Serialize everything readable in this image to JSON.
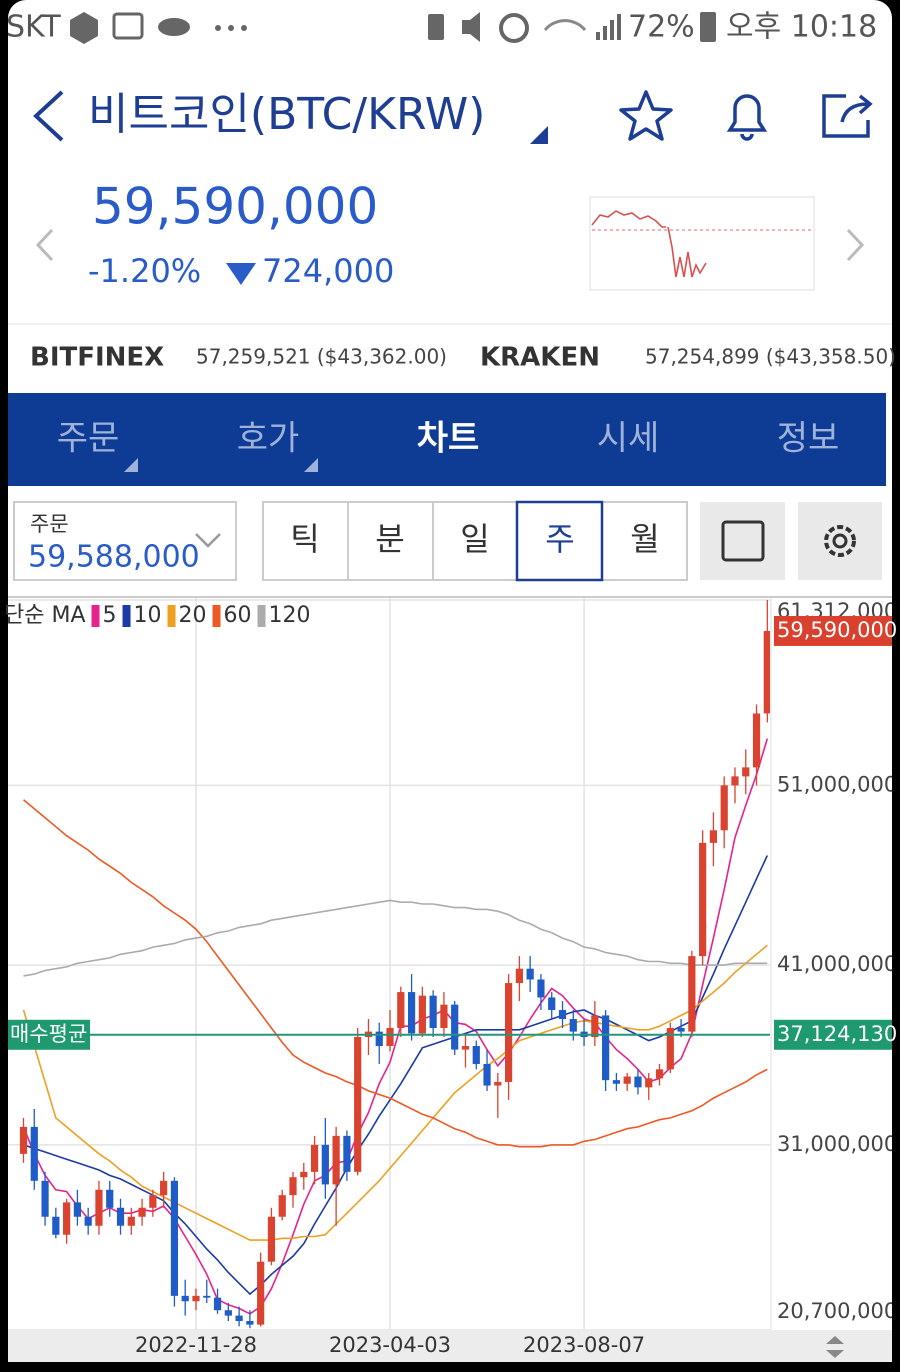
{
  "status_bar": {
    "carrier": "SKT",
    "battery": "72%",
    "time": "오후 10:18"
  },
  "header": {
    "title": "비트코인(BTC/KRW)"
  },
  "price": {
    "current": "59,590,000",
    "change_rate": "-1.20%",
    "change": "724,000"
  },
  "exchanges": [
    {
      "name": "BITFINEX",
      "price": "57,259,521 ($43,362.00)"
    },
    {
      "name": "KRAKEN",
      "price": "57,254,899 ($43,358.50)"
    }
  ],
  "tabs": [
    "주문",
    "호가",
    "차트",
    "시세",
    "정보"
  ],
  "order_box": {
    "label": "주문",
    "price": "59,588,000"
  },
  "periods": [
    "틱",
    "분",
    "일",
    "주",
    "월"
  ],
  "chart_data": {
    "type": "candlestick",
    "legend_title": "단순 MA",
    "up_color": "#d9432f",
    "down_color": "#1f5cc8",
    "grid": true,
    "ylim": [
      20700000,
      61312000
    ],
    "yticks": [
      {
        "value": 20700000,
        "label": "20,700,000"
      },
      {
        "value": 31000000,
        "label": "31,000,000"
      },
      {
        "value": 41000000,
        "label": "41,000,000"
      },
      {
        "value": 51000000,
        "label": "51,000,000"
      },
      {
        "value": 61312000,
        "label": "61,312,000"
      }
    ],
    "categories": [
      null,
      null,
      null,
      null,
      null,
      null,
      null,
      null,
      null,
      null,
      null,
      null,
      null,
      null,
      null,
      null,
      "2022-11-28",
      null,
      null,
      null,
      null,
      null,
      null,
      null,
      null,
      null,
      null,
      null,
      null,
      null,
      null,
      null,
      null,
      null,
      "2023-04-03",
      null,
      null,
      null,
      null,
      null,
      null,
      null,
      null,
      null,
      null,
      null,
      null,
      null,
      null,
      null,
      null,
      null,
      "2023-08-07",
      null,
      null,
      null,
      null,
      null,
      null,
      null,
      null,
      null,
      null,
      null,
      null,
      null,
      null,
      null,
      null,
      null
    ],
    "ohlc": [
      [
        30500000,
        32500000,
        30000000,
        32000000
      ],
      [
        32000000,
        33000000,
        28500000,
        29000000
      ],
      [
        29000000,
        29500000,
        26500000,
        27000000
      ],
      [
        27000000,
        27500000,
        25800000,
        26000000
      ],
      [
        26000000,
        28000000,
        25500000,
        27800000
      ],
      [
        27800000,
        28500000,
        26500000,
        27000000
      ],
      [
        27000000,
        27500000,
        26000000,
        26500000
      ],
      [
        26500000,
        29000000,
        26000000,
        28500000
      ],
      [
        28500000,
        29000000,
        27000000,
        27500000
      ],
      [
        27500000,
        28000000,
        26000000,
        26500000
      ],
      [
        26500000,
        27500000,
        26000000,
        27000000
      ],
      [
        27000000,
        28000000,
        26500000,
        27500000
      ],
      [
        27500000,
        28500000,
        27000000,
        28200000
      ],
      [
        28200000,
        29500000,
        27500000,
        29000000
      ],
      [
        29000000,
        29200000,
        22000000,
        22600000
      ],
      [
        22600000,
        23500000,
        21500000,
        22300000
      ],
      [
        22300000,
        23000000,
        21800000,
        22600000
      ],
      [
        22600000,
        23500000,
        22200000,
        22500000
      ],
      [
        22500000,
        23000000,
        21600000,
        21800000
      ],
      [
        21800000,
        22200000,
        21200000,
        21500000
      ],
      [
        21500000,
        22000000,
        20900000,
        21200000
      ],
      [
        21200000,
        21800000,
        20800000,
        21000000
      ],
      [
        21000000,
        25000000,
        20900000,
        24500000
      ],
      [
        24500000,
        27500000,
        24300000,
        27000000
      ],
      [
        27000000,
        28500000,
        26800000,
        28200000
      ],
      [
        28200000,
        29500000,
        27500000,
        29200000
      ],
      [
        29200000,
        30000000,
        28500000,
        29500000
      ],
      [
        29500000,
        31500000,
        28800000,
        31000000
      ],
      [
        31000000,
        32500000,
        28000000,
        28800000
      ],
      [
        28800000,
        32000000,
        26500000,
        31500000
      ],
      [
        31500000,
        31800000,
        29000000,
        29500000
      ],
      [
        29500000,
        37500000,
        29300000,
        37000000
      ],
      [
        37000000,
        38000000,
        36000000,
        37300000
      ],
      [
        37300000,
        37800000,
        35500000,
        36500000
      ],
      [
        36500000,
        38500000,
        36200000,
        37500000
      ],
      [
        37500000,
        39800000,
        37000000,
        39500000
      ],
      [
        39500000,
        40500000,
        36800000,
        37200000
      ],
      [
        37200000,
        39800000,
        37000000,
        39300000
      ],
      [
        39300000,
        39600000,
        37000000,
        37500000
      ],
      [
        37500000,
        39500000,
        37000000,
        38800000
      ],
      [
        38800000,
        39000000,
        36000000,
        36300000
      ],
      [
        36300000,
        37200000,
        35300000,
        36500000
      ],
      [
        36500000,
        36800000,
        35200000,
        35500000
      ],
      [
        35500000,
        36300000,
        34000000,
        34300000
      ],
      [
        34300000,
        35000000,
        32500000,
        34500000
      ],
      [
        34500000,
        40500000,
        33500000,
        40000000
      ],
      [
        40000000,
        41500000,
        39000000,
        40800000
      ],
      [
        40800000,
        41500000,
        39500000,
        40200000
      ],
      [
        40200000,
        40500000,
        38500000,
        39200000
      ],
      [
        39200000,
        39500000,
        38000000,
        38500000
      ],
      [
        38500000,
        39000000,
        37500000,
        38000000
      ],
      [
        38000000,
        38500000,
        36800000,
        37300000
      ],
      [
        37300000,
        38000000,
        36500000,
        37000000
      ],
      [
        37000000,
        39000000,
        36500000,
        38200000
      ],
      [
        38200000,
        38500000,
        34000000,
        34600000
      ],
      [
        34600000,
        35000000,
        34000000,
        34400000
      ],
      [
        34400000,
        35000000,
        34000000,
        34800000
      ],
      [
        34800000,
        35200000,
        33800000,
        34200000
      ],
      [
        34200000,
        35000000,
        33500000,
        34700000
      ],
      [
        34700000,
        35500000,
        34300000,
        35200000
      ],
      [
        35200000,
        37800000,
        35000000,
        37500000
      ],
      [
        37500000,
        38000000,
        37000000,
        37300000
      ],
      [
        37300000,
        41800000,
        37000000,
        41500000
      ],
      [
        41500000,
        48500000,
        41000000,
        47800000
      ],
      [
        47800000,
        49500000,
        46500000,
        48500000
      ],
      [
        48500000,
        51500000,
        47500000,
        51000000
      ],
      [
        51000000,
        52000000,
        50000000,
        51500000
      ],
      [
        51500000,
        53000000,
        50500000,
        52000000
      ],
      [
        52000000,
        55500000,
        51000000,
        55000000
      ],
      [
        55000000,
        61312000,
        54500000,
        59590000
      ]
    ],
    "series": [
      {
        "name": "5",
        "color": "#e6228f",
        "values": [
          32000000,
          30500000,
          29300000,
          28500000,
          28400000,
          27600000,
          26900000,
          27200000,
          27500000,
          27200000,
          27200000,
          27400000,
          27300000,
          27600000,
          26900000,
          25900000,
          24900000,
          23800000,
          22400000,
          22100000,
          21900000,
          21600000,
          22000000,
          23000000,
          24400000,
          26000000,
          27700000,
          29000000,
          29300000,
          30000000,
          30100000,
          31600000,
          32800000,
          34400000,
          35600000,
          37600000,
          37600000,
          38000000,
          38200000,
          38500000,
          37800000,
          37700000,
          37300000,
          36300000,
          35400000,
          36100000,
          37000000,
          38000000,
          38900000,
          39700000,
          39300000,
          38600000,
          38000000,
          37800000,
          37000000,
          36300000,
          35800000,
          35200000,
          34500000,
          34700000,
          35300000,
          35800000,
          37200000,
          39900000,
          42500000,
          45200000,
          48100000,
          49900000,
          51600000,
          53600000
        ]
      },
      {
        "name": "10",
        "color": "#1b3aa6",
        "values": [
          31000000,
          30800000,
          30600000,
          30400000,
          30200000,
          30000000,
          29800000,
          29600000,
          29300000,
          29100000,
          28800000,
          28500000,
          28200000,
          27900000,
          27200000,
          26600000,
          25900000,
          25200000,
          24600000,
          23900000,
          23300000,
          22700000,
          23200000,
          23800000,
          24300000,
          24800000,
          25500000,
          26600000,
          27600000,
          28600000,
          29700000,
          30700000,
          31600000,
          32600000,
          33500000,
          34400000,
          35400000,
          36400000,
          36600000,
          36800000,
          37000000,
          37200000,
          37400000,
          37400000,
          37400000,
          37400000,
          37400000,
          37600000,
          37800000,
          38000000,
          38200000,
          38400000,
          38500000,
          38200000,
          38000000,
          37700000,
          37400000,
          37100000,
          36800000,
          37000000,
          37300000,
          37600000,
          37900000,
          39200000,
          40500000,
          41900000,
          43200000,
          44500000,
          45800000,
          47100000
        ]
      },
      {
        "name": "20",
        "color": "#eea021",
        "values": [
          38500000,
          36500000,
          34500000,
          32500000,
          32000000,
          31500000,
          31000000,
          30500000,
          30100000,
          29600000,
          29200000,
          28700000,
          28400000,
          28100000,
          27800000,
          27500000,
          27200000,
          26900000,
          26600000,
          26300000,
          26000000,
          25700000,
          25700000,
          25700000,
          25800000,
          25800000,
          25900000,
          25900000,
          26000000,
          26600000,
          27200000,
          27800000,
          28400000,
          29000000,
          29700000,
          30400000,
          31100000,
          31800000,
          32500000,
          33200000,
          33900000,
          34400000,
          34900000,
          35400000,
          35800000,
          36300000,
          36800000,
          37000000,
          37200000,
          37400000,
          37600000,
          37800000,
          37900000,
          37800000,
          37700000,
          37600000,
          37500000,
          37400000,
          37400000,
          37600000,
          37900000,
          38200000,
          38500000,
          39000000,
          39500000,
          40000000,
          40600000,
          41100000,
          41600000,
          42100000
        ]
      },
      {
        "name": "60",
        "color": "#ee5a24",
        "values": [
          50200000,
          49700000,
          49200000,
          48700000,
          48200000,
          47800000,
          47400000,
          46900000,
          46500000,
          46100000,
          45600000,
          45200000,
          44800000,
          44300000,
          43900000,
          43500000,
          43000000,
          42300000,
          41500000,
          40700000,
          39900000,
          39100000,
          38300000,
          37500000,
          36700000,
          36000000,
          35600000,
          35300000,
          35000000,
          34800000,
          34500000,
          34300000,
          34000000,
          33800000,
          33600000,
          33300000,
          33000000,
          32700000,
          32500000,
          32200000,
          31900000,
          31700000,
          31400000,
          31200000,
          31000000,
          31000000,
          30900000,
          30900000,
          30900000,
          31000000,
          31000000,
          31000000,
          31200000,
          31300000,
          31500000,
          31700000,
          31900000,
          32000000,
          32200000,
          32400000,
          32500000,
          32700000,
          32900000,
          33200000,
          33600000,
          33900000,
          34200000,
          34500000,
          34900000,
          35200000
        ]
      },
      {
        "name": "120",
        "color": "#ababab",
        "values": [
          40400000,
          40500000,
          40700000,
          40800000,
          40900000,
          41100000,
          41200000,
          41300000,
          41400000,
          41600000,
          41700000,
          41800000,
          42000000,
          42100000,
          42200000,
          42400000,
          42500000,
          42600000,
          42800000,
          42900000,
          43100000,
          43200000,
          43300000,
          43500000,
          43600000,
          43700000,
          43800000,
          43900000,
          44000000,
          44100000,
          44200000,
          44300000,
          44400000,
          44500000,
          44600000,
          44500000,
          44500000,
          44400000,
          44400000,
          44300000,
          44200000,
          44200000,
          44100000,
          44100000,
          44000000,
          43800000,
          43500000,
          43300000,
          43000000,
          42800000,
          42500000,
          42300000,
          42000000,
          41900000,
          41700000,
          41600000,
          41500000,
          41300000,
          41200000,
          41200000,
          41100000,
          41100000,
          41000000,
          41000000,
          41000000,
          41000000,
          41100000,
          41100000,
          41100000,
          41100000
        ]
      }
    ],
    "price_tag": {
      "value": 59590000,
      "label": "59,590,000"
    },
    "avg_buy": {
      "label": "매수평균",
      "value": 37124130,
      "value_label": "37,124,130"
    }
  }
}
